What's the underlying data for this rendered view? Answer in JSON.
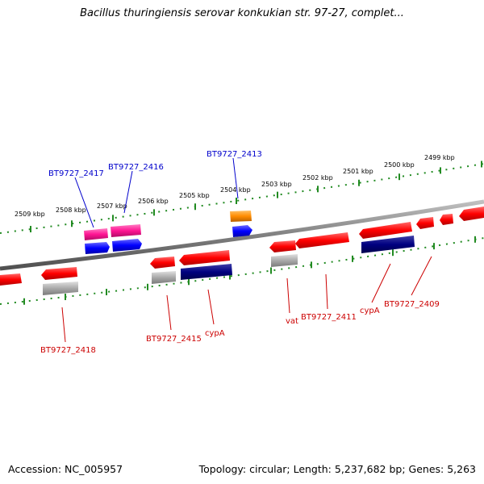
{
  "title": "Bacillus thuringiensis serovar konkukian str. 97-27, complet...",
  "footer": {
    "accession": "Accession: NC_005957",
    "topology": "Topology: circular; Length: 5,237,682 bp; Genes: 5,263"
  },
  "ticks": [
    {
      "label": "2509 kbp"
    },
    {
      "label": "2508 kbp"
    },
    {
      "label": "2507 kbp"
    },
    {
      "label": "2506 kbp"
    },
    {
      "label": "2505 kbp"
    },
    {
      "label": "2504 kbp"
    },
    {
      "label": "2503 kbp"
    },
    {
      "label": "2502 kbp"
    },
    {
      "label": "2501 kbp"
    },
    {
      "label": "2500 kbp"
    },
    {
      "label": "2499 kbp"
    }
  ],
  "gene_labels": [
    {
      "text": "BT9727_2417",
      "color": "#0000cc"
    },
    {
      "text": "BT9727_2416",
      "color": "#0000cc"
    },
    {
      "text": "BT9727_2413",
      "color": "#0000cc"
    },
    {
      "text": "BT9727_2418",
      "color": "#cc0000"
    },
    {
      "text": "BT9727_2415",
      "color": "#cc0000"
    },
    {
      "text": "cypA",
      "color": "#cc0000"
    },
    {
      "text": "vat",
      "color": "#cc0000"
    },
    {
      "text": "BT9727_2411",
      "color": "#cc0000"
    },
    {
      "text": "cypA",
      "color": "#cc0000"
    },
    {
      "text": "BT9727_2409",
      "color": "#cc0000"
    }
  ],
  "colors": {
    "backbone": "#808080",
    "tick": "#228b22",
    "forward_cds": "#ff0000",
    "rna": "#ff1493",
    "blast_hit": "#0000ff",
    "orange_feature": "#ff8c00",
    "gray_feature": "#a9a9a9",
    "navy_feature": "#000080"
  }
}
